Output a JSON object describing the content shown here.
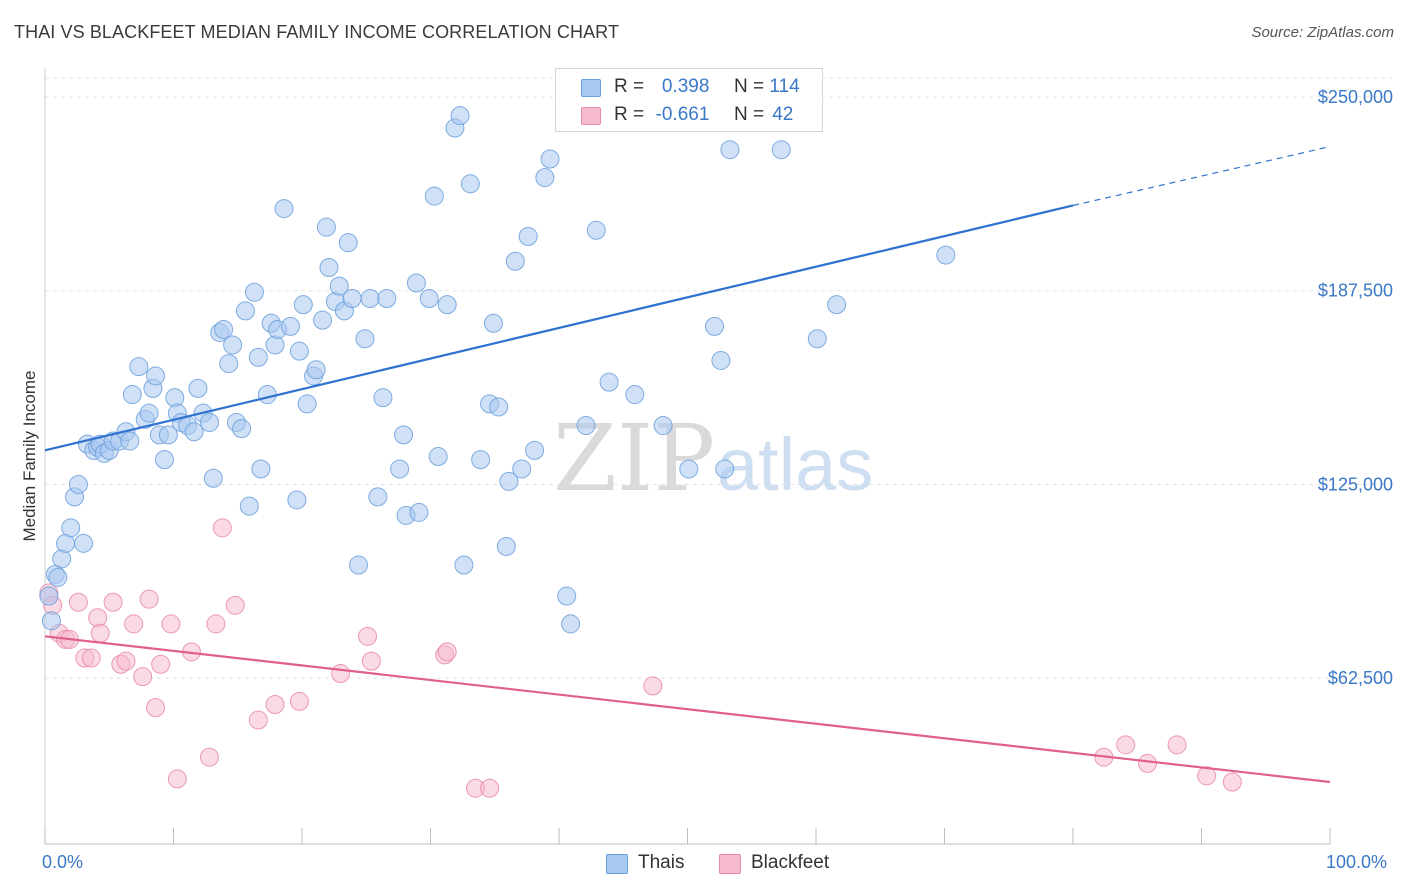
{
  "header": {
    "title": "THAI VS BLACKFEET MEDIAN FAMILY INCOME CORRELATION CHART",
    "source": "Source: ZipAtlas.com"
  },
  "watermark": {
    "part1": "ZIP",
    "part2": "atlas"
  },
  "colors": {
    "thais_fill": "#a9c8f0",
    "thais_stroke": "#6a9fdc",
    "thais_line": "#2f72cf",
    "blackfeet_fill": "#f6bccd",
    "blackfeet_stroke": "#e98aa8",
    "blackfeet_line": "#e0608a",
    "axis_label": "#3a78c8",
    "grid": "#e3e3e3"
  },
  "legend": {
    "thais": {
      "r_label": "R =",
      "r_value": "0.398",
      "n_label": "N =",
      "n_value": "114"
    },
    "blackfeet": {
      "r_label": "R =",
      "r_value": "-0.661",
      "n_label": "N =",
      "n_value": "42"
    }
  },
  "bottom_legend": {
    "thais": "Thais",
    "blackfeet": "Blackfeet"
  },
  "chart_data": {
    "type": "scatter",
    "title": "THAI VS BLACKFEET MEDIAN FAMILY INCOME CORRELATION CHART",
    "xlabel": "",
    "ylabel": "Median Family Income",
    "x_range": [
      0,
      100
    ],
    "y_range": [
      0,
      265000
    ],
    "x_tick_labels": [
      "0.0%",
      "100.0%"
    ],
    "x_ticks": [
      0,
      10,
      20,
      30,
      40,
      50,
      60,
      70,
      80,
      90,
      100
    ],
    "y_ticks": [
      {
        "value": 62500,
        "label": "$62,500"
      },
      {
        "value": 125000,
        "label": "$125,000"
      },
      {
        "value": 187500,
        "label": "$187,500"
      },
      {
        "value": 250000,
        "label": "$250,000"
      }
    ],
    "series": [
      {
        "name": "Thais",
        "r": 0.398,
        "n": 114,
        "trend": {
          "x0": 0,
          "y0": 136000,
          "x1": 80,
          "y1": 215000,
          "x_dash_end": 100,
          "y_dash_end": 234000
        },
        "points": [
          [
            0.3,
            89000
          ],
          [
            0.5,
            81000
          ],
          [
            0.8,
            96000
          ],
          [
            1.0,
            95000
          ],
          [
            1.3,
            101000
          ],
          [
            1.6,
            106000
          ],
          [
            2.0,
            111000
          ],
          [
            2.3,
            121000
          ],
          [
            2.6,
            125000
          ],
          [
            3.0,
            106000
          ],
          [
            3.3,
            138000
          ],
          [
            3.8,
            136000
          ],
          [
            4.1,
            137000
          ],
          [
            4.3,
            138000
          ],
          [
            4.6,
            135000
          ],
          [
            5.0,
            136000
          ],
          [
            5.3,
            139000
          ],
          [
            5.8,
            139000
          ],
          [
            6.3,
            142000
          ],
          [
            6.6,
            139000
          ],
          [
            6.8,
            154000
          ],
          [
            7.3,
            163000
          ],
          [
            7.8,
            146000
          ],
          [
            8.1,
            148000
          ],
          [
            8.4,
            156000
          ],
          [
            8.6,
            160000
          ],
          [
            8.9,
            141000
          ],
          [
            9.3,
            133000
          ],
          [
            9.6,
            141000
          ],
          [
            10.1,
            153000
          ],
          [
            10.3,
            148000
          ],
          [
            10.6,
            145000
          ],
          [
            11.1,
            144000
          ],
          [
            11.6,
            142000
          ],
          [
            11.9,
            156000
          ],
          [
            12.3,
            148000
          ],
          [
            12.8,
            145000
          ],
          [
            13.1,
            127000
          ],
          [
            13.6,
            174000
          ],
          [
            13.9,
            175000
          ],
          [
            14.3,
            164000
          ],
          [
            14.6,
            170000
          ],
          [
            14.9,
            145000
          ],
          [
            15.3,
            143000
          ],
          [
            15.6,
            181000
          ],
          [
            15.9,
            118000
          ],
          [
            16.3,
            187000
          ],
          [
            16.6,
            166000
          ],
          [
            16.8,
            130000
          ],
          [
            17.3,
            154000
          ],
          [
            17.6,
            177000
          ],
          [
            17.9,
            170000
          ],
          [
            18.1,
            175000
          ],
          [
            18.6,
            214000
          ],
          [
            19.1,
            176000
          ],
          [
            19.6,
            120000
          ],
          [
            19.8,
            168000
          ],
          [
            20.1,
            183000
          ],
          [
            20.4,
            151000
          ],
          [
            20.9,
            160000
          ],
          [
            21.1,
            162000
          ],
          [
            21.6,
            178000
          ],
          [
            21.9,
            208000
          ],
          [
            22.1,
            195000
          ],
          [
            22.6,
            184000
          ],
          [
            22.9,
            189000
          ],
          [
            23.3,
            181000
          ],
          [
            23.6,
            203000
          ],
          [
            23.9,
            185000
          ],
          [
            24.4,
            99000
          ],
          [
            24.9,
            172000
          ],
          [
            25.3,
            185000
          ],
          [
            25.9,
            121000
          ],
          [
            26.3,
            153000
          ],
          [
            26.6,
            185000
          ],
          [
            27.6,
            130000
          ],
          [
            27.9,
            141000
          ],
          [
            28.1,
            115000
          ],
          [
            28.9,
            190000
          ],
          [
            29.1,
            116000
          ],
          [
            29.9,
            185000
          ],
          [
            30.3,
            218000
          ],
          [
            30.6,
            134000
          ],
          [
            31.3,
            183000
          ],
          [
            31.9,
            240000
          ],
          [
            32.3,
            244000
          ],
          [
            32.6,
            99000
          ],
          [
            33.1,
            222000
          ],
          [
            33.9,
            133000
          ],
          [
            34.6,
            151000
          ],
          [
            34.9,
            177000
          ],
          [
            35.3,
            150000
          ],
          [
            35.9,
            105000
          ],
          [
            36.1,
            126000
          ],
          [
            36.6,
            197000
          ],
          [
            37.1,
            130000
          ],
          [
            37.6,
            205000
          ],
          [
            38.1,
            136000
          ],
          [
            38.9,
            224000
          ],
          [
            39.3,
            230000
          ],
          [
            40.6,
            89000
          ],
          [
            40.9,
            80000
          ],
          [
            42.1,
            144000
          ],
          [
            42.9,
            207000
          ],
          [
            43.9,
            158000
          ],
          [
            45.9,
            154000
          ],
          [
            48.1,
            144000
          ],
          [
            50.1,
            130000
          ],
          [
            52.1,
            176000
          ],
          [
            52.6,
            165000
          ],
          [
            52.9,
            130000
          ],
          [
            53.3,
            233000
          ],
          [
            57.3,
            233000
          ],
          [
            60.1,
            172000
          ],
          [
            61.6,
            183000
          ],
          [
            70.1,
            199000
          ]
        ]
      },
      {
        "name": "Blackfeet",
        "r": -0.661,
        "n": 42,
        "trend": {
          "x0": 0,
          "y0": 76000,
          "x1": 100,
          "y1": 29000
        },
        "points": [
          [
            0.3,
            90000
          ],
          [
            0.6,
            86000
          ],
          [
            1.1,
            77000
          ],
          [
            1.6,
            75000
          ],
          [
            1.9,
            75000
          ],
          [
            2.6,
            87000
          ],
          [
            3.1,
            69000
          ],
          [
            3.6,
            69000
          ],
          [
            4.1,
            82000
          ],
          [
            4.3,
            77000
          ],
          [
            5.3,
            87000
          ],
          [
            5.9,
            67000
          ],
          [
            6.3,
            68000
          ],
          [
            6.9,
            80000
          ],
          [
            7.6,
            63000
          ],
          [
            8.1,
            88000
          ],
          [
            8.6,
            53000
          ],
          [
            9.0,
            67000
          ],
          [
            9.8,
            80000
          ],
          [
            10.3,
            30000
          ],
          [
            11.4,
            71000
          ],
          [
            12.8,
            37000
          ],
          [
            13.3,
            80000
          ],
          [
            13.8,
            111000
          ],
          [
            14.8,
            86000
          ],
          [
            16.6,
            49000
          ],
          [
            17.9,
            54000
          ],
          [
            19.8,
            55000
          ],
          [
            23.0,
            64000
          ],
          [
            25.1,
            76000
          ],
          [
            25.4,
            68000
          ],
          [
            31.1,
            70000
          ],
          [
            31.3,
            71000
          ],
          [
            33.5,
            27000
          ],
          [
            34.6,
            27000
          ],
          [
            47.3,
            60000
          ],
          [
            82.4,
            37000
          ],
          [
            84.1,
            41000
          ],
          [
            85.8,
            35000
          ],
          [
            88.1,
            41000
          ],
          [
            90.4,
            31000
          ],
          [
            92.4,
            29000
          ]
        ]
      }
    ]
  }
}
